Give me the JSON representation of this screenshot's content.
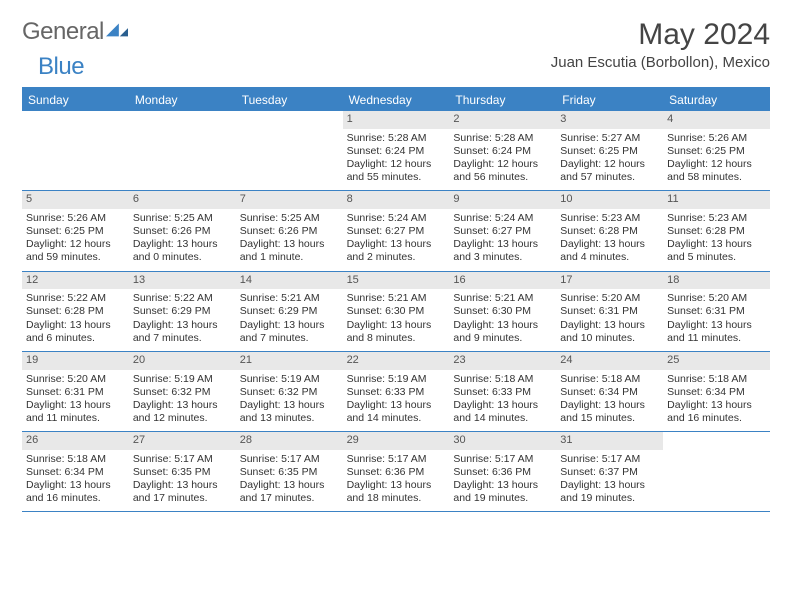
{
  "logo": {
    "part1": "General",
    "part2": "Blue"
  },
  "title": "May 2024",
  "location": "Juan Escutia (Borbollon), Mexico",
  "dow": [
    "Sunday",
    "Monday",
    "Tuesday",
    "Wednesday",
    "Thursday",
    "Friday",
    "Saturday"
  ],
  "colors": {
    "accent": "#3b82c4",
    "dayHeader": "#e8e8e8",
    "background": "#ffffff",
    "text": "#333333"
  },
  "weeks": [
    [
      {
        "n": "",
        "sr": "",
        "ss": "",
        "dl1": "",
        "dl2": ""
      },
      {
        "n": "",
        "sr": "",
        "ss": "",
        "dl1": "",
        "dl2": ""
      },
      {
        "n": "",
        "sr": "",
        "ss": "",
        "dl1": "",
        "dl2": ""
      },
      {
        "n": "1",
        "sr": "Sunrise: 5:28 AM",
        "ss": "Sunset: 6:24 PM",
        "dl1": "Daylight: 12 hours",
        "dl2": "and 55 minutes."
      },
      {
        "n": "2",
        "sr": "Sunrise: 5:28 AM",
        "ss": "Sunset: 6:24 PM",
        "dl1": "Daylight: 12 hours",
        "dl2": "and 56 minutes."
      },
      {
        "n": "3",
        "sr": "Sunrise: 5:27 AM",
        "ss": "Sunset: 6:25 PM",
        "dl1": "Daylight: 12 hours",
        "dl2": "and 57 minutes."
      },
      {
        "n": "4",
        "sr": "Sunrise: 5:26 AM",
        "ss": "Sunset: 6:25 PM",
        "dl1": "Daylight: 12 hours",
        "dl2": "and 58 minutes."
      }
    ],
    [
      {
        "n": "5",
        "sr": "Sunrise: 5:26 AM",
        "ss": "Sunset: 6:25 PM",
        "dl1": "Daylight: 12 hours",
        "dl2": "and 59 minutes."
      },
      {
        "n": "6",
        "sr": "Sunrise: 5:25 AM",
        "ss": "Sunset: 6:26 PM",
        "dl1": "Daylight: 13 hours",
        "dl2": "and 0 minutes."
      },
      {
        "n": "7",
        "sr": "Sunrise: 5:25 AM",
        "ss": "Sunset: 6:26 PM",
        "dl1": "Daylight: 13 hours",
        "dl2": "and 1 minute."
      },
      {
        "n": "8",
        "sr": "Sunrise: 5:24 AM",
        "ss": "Sunset: 6:27 PM",
        "dl1": "Daylight: 13 hours",
        "dl2": "and 2 minutes."
      },
      {
        "n": "9",
        "sr": "Sunrise: 5:24 AM",
        "ss": "Sunset: 6:27 PM",
        "dl1": "Daylight: 13 hours",
        "dl2": "and 3 minutes."
      },
      {
        "n": "10",
        "sr": "Sunrise: 5:23 AM",
        "ss": "Sunset: 6:28 PM",
        "dl1": "Daylight: 13 hours",
        "dl2": "and 4 minutes."
      },
      {
        "n": "11",
        "sr": "Sunrise: 5:23 AM",
        "ss": "Sunset: 6:28 PM",
        "dl1": "Daylight: 13 hours",
        "dl2": "and 5 minutes."
      }
    ],
    [
      {
        "n": "12",
        "sr": "Sunrise: 5:22 AM",
        "ss": "Sunset: 6:28 PM",
        "dl1": "Daylight: 13 hours",
        "dl2": "and 6 minutes."
      },
      {
        "n": "13",
        "sr": "Sunrise: 5:22 AM",
        "ss": "Sunset: 6:29 PM",
        "dl1": "Daylight: 13 hours",
        "dl2": "and 7 minutes."
      },
      {
        "n": "14",
        "sr": "Sunrise: 5:21 AM",
        "ss": "Sunset: 6:29 PM",
        "dl1": "Daylight: 13 hours",
        "dl2": "and 7 minutes."
      },
      {
        "n": "15",
        "sr": "Sunrise: 5:21 AM",
        "ss": "Sunset: 6:30 PM",
        "dl1": "Daylight: 13 hours",
        "dl2": "and 8 minutes."
      },
      {
        "n": "16",
        "sr": "Sunrise: 5:21 AM",
        "ss": "Sunset: 6:30 PM",
        "dl1": "Daylight: 13 hours",
        "dl2": "and 9 minutes."
      },
      {
        "n": "17",
        "sr": "Sunrise: 5:20 AM",
        "ss": "Sunset: 6:31 PM",
        "dl1": "Daylight: 13 hours",
        "dl2": "and 10 minutes."
      },
      {
        "n": "18",
        "sr": "Sunrise: 5:20 AM",
        "ss": "Sunset: 6:31 PM",
        "dl1": "Daylight: 13 hours",
        "dl2": "and 11 minutes."
      }
    ],
    [
      {
        "n": "19",
        "sr": "Sunrise: 5:20 AM",
        "ss": "Sunset: 6:31 PM",
        "dl1": "Daylight: 13 hours",
        "dl2": "and 11 minutes."
      },
      {
        "n": "20",
        "sr": "Sunrise: 5:19 AM",
        "ss": "Sunset: 6:32 PM",
        "dl1": "Daylight: 13 hours",
        "dl2": "and 12 minutes."
      },
      {
        "n": "21",
        "sr": "Sunrise: 5:19 AM",
        "ss": "Sunset: 6:32 PM",
        "dl1": "Daylight: 13 hours",
        "dl2": "and 13 minutes."
      },
      {
        "n": "22",
        "sr": "Sunrise: 5:19 AM",
        "ss": "Sunset: 6:33 PM",
        "dl1": "Daylight: 13 hours",
        "dl2": "and 14 minutes."
      },
      {
        "n": "23",
        "sr": "Sunrise: 5:18 AM",
        "ss": "Sunset: 6:33 PM",
        "dl1": "Daylight: 13 hours",
        "dl2": "and 14 minutes."
      },
      {
        "n": "24",
        "sr": "Sunrise: 5:18 AM",
        "ss": "Sunset: 6:34 PM",
        "dl1": "Daylight: 13 hours",
        "dl2": "and 15 minutes."
      },
      {
        "n": "25",
        "sr": "Sunrise: 5:18 AM",
        "ss": "Sunset: 6:34 PM",
        "dl1": "Daylight: 13 hours",
        "dl2": "and 16 minutes."
      }
    ],
    [
      {
        "n": "26",
        "sr": "Sunrise: 5:18 AM",
        "ss": "Sunset: 6:34 PM",
        "dl1": "Daylight: 13 hours",
        "dl2": "and 16 minutes."
      },
      {
        "n": "27",
        "sr": "Sunrise: 5:17 AM",
        "ss": "Sunset: 6:35 PM",
        "dl1": "Daylight: 13 hours",
        "dl2": "and 17 minutes."
      },
      {
        "n": "28",
        "sr": "Sunrise: 5:17 AM",
        "ss": "Sunset: 6:35 PM",
        "dl1": "Daylight: 13 hours",
        "dl2": "and 17 minutes."
      },
      {
        "n": "29",
        "sr": "Sunrise: 5:17 AM",
        "ss": "Sunset: 6:36 PM",
        "dl1": "Daylight: 13 hours",
        "dl2": "and 18 minutes."
      },
      {
        "n": "30",
        "sr": "Sunrise: 5:17 AM",
        "ss": "Sunset: 6:36 PM",
        "dl1": "Daylight: 13 hours",
        "dl2": "and 19 minutes."
      },
      {
        "n": "31",
        "sr": "Sunrise: 5:17 AM",
        "ss": "Sunset: 6:37 PM",
        "dl1": "Daylight: 13 hours",
        "dl2": "and 19 minutes."
      },
      {
        "n": "",
        "sr": "",
        "ss": "",
        "dl1": "",
        "dl2": ""
      }
    ]
  ]
}
